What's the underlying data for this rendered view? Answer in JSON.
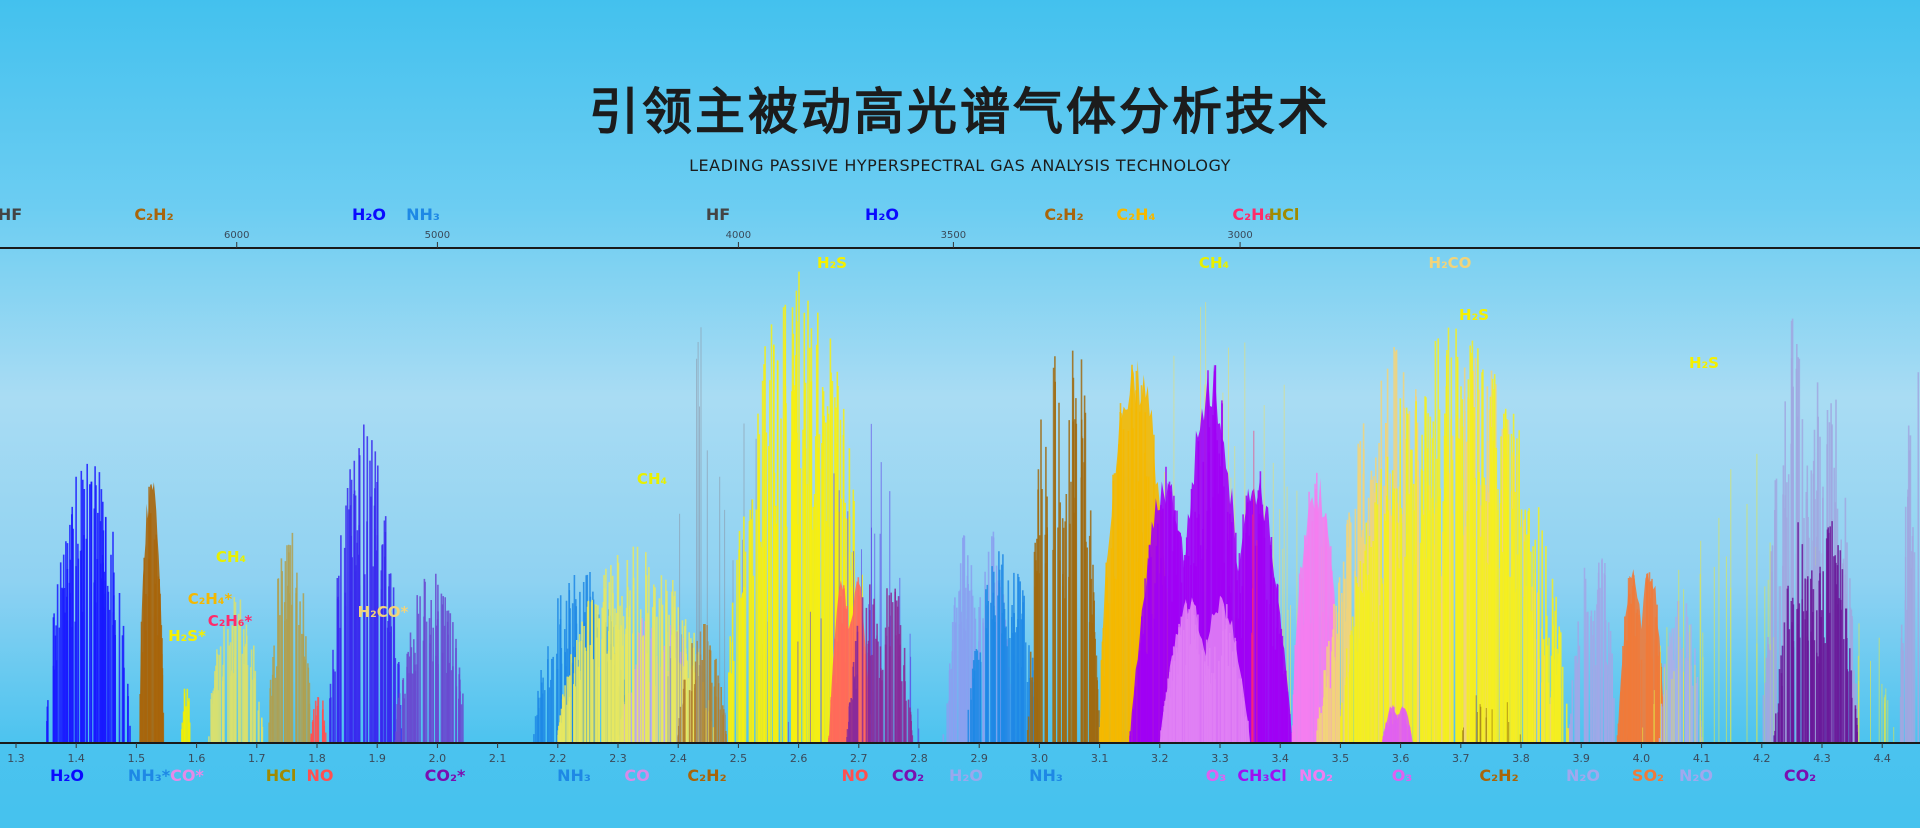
{
  "header": {
    "title": "引领主被动高光谱气体分析技术",
    "subtitle": "LEADING PASSIVE HYPERSPECTRAL GAS ANALYSIS TECHNOLOGY"
  },
  "chart_data": {
    "type": "area",
    "title": "",
    "xlabel": "",
    "ylabel": "",
    "x_unit_bottom": "µm",
    "x_unit_top": "cm⁻¹",
    "xlim": [
      1.28,
      4.47
    ],
    "ylim": [
      0,
      1
    ],
    "grid": false,
    "bottom_ticks": [
      "1.3",
      "1.4",
      "1.5",
      "1.6",
      "1.7",
      "1.8",
      "1.9",
      "2.0",
      "2.1",
      "2.2",
      "2.3",
      "2.4",
      "2.5",
      "2.6",
      "2.7",
      "2.8",
      "2.9",
      "3.0",
      "3.1",
      "3.2",
      "3.3",
      "3.4",
      "3.5",
      "3.6",
      "3.7",
      "3.8",
      "3.9",
      "4.0",
      "4.1",
      "4.2",
      "4.3",
      "4.4"
    ],
    "top_ticks": [
      "6000",
      "5000",
      "4000",
      "3500",
      "3000"
    ],
    "top_gas_labels": [
      {
        "text": "HF",
        "color": "#444444"
      },
      {
        "text": "C₂H₂",
        "color": "#a8650a"
      },
      {
        "text": "H₂O",
        "color": "#0a0aff"
      },
      {
        "text": "NH₃",
        "color": "#1e88e5"
      },
      {
        "text": "HF",
        "color": "#444444"
      },
      {
        "text": "H₂O",
        "color": "#0a0aff"
      },
      {
        "text": "C₂H₂",
        "color": "#a8650a"
      },
      {
        "text": "C₂H₄",
        "color": "#f5b800"
      },
      {
        "text": "C₂H₆",
        "color": "#ff2a6a"
      },
      {
        "text": "HCl",
        "color": "#a08a00"
      }
    ],
    "bottom_gas_labels": [
      {
        "text": "H₂O",
        "color": "#0a0aff"
      },
      {
        "text": "NH₃*",
        "color": "#1e88e5"
      },
      {
        "text": "CO*",
        "color": "#e58ae8"
      },
      {
        "text": "HCl",
        "color": "#a08a00"
      },
      {
        "text": "NO",
        "color": "#ff5050"
      },
      {
        "text": "CO₂*",
        "color": "#7a0fb0"
      },
      {
        "text": "NH₃",
        "color": "#1e88e5"
      },
      {
        "text": "CO",
        "color": "#d88ae8"
      },
      {
        "text": "C₂H₂",
        "color": "#a8650a"
      },
      {
        "text": "NO",
        "color": "#ff5050"
      },
      {
        "text": "CO₂",
        "color": "#7a0fb0"
      },
      {
        "text": "H₂O",
        "color": "#9aa8ee"
      },
      {
        "text": "NH₃",
        "color": "#1e88e5"
      },
      {
        "text": "O₃",
        "color": "#e060f0"
      },
      {
        "text": "CH₃Cl",
        "color": "#a010f0"
      },
      {
        "text": "NO₂",
        "color": "#f07ef0"
      },
      {
        "text": "O₃",
        "color": "#e060f0"
      },
      {
        "text": "C₂H₂",
        "color": "#a8650a"
      },
      {
        "text": "N₂O",
        "color": "#a0a8ee"
      },
      {
        "text": "SO₂",
        "color": "#f07a3a"
      },
      {
        "text": "N₂O",
        "color": "#a0a8ee"
      },
      {
        "text": "CO₂",
        "color": "#7a0fb0"
      }
    ],
    "inner_gas_labels": [
      {
        "text": "CH₄",
        "color": "#e8f000"
      },
      {
        "text": "C₂H₄*",
        "color": "#f5b800"
      },
      {
        "text": "C₂H₆*",
        "color": "#ff2a6a"
      },
      {
        "text": "H₂S*",
        "color": "#f5f000"
      },
      {
        "text": "H₂CO*",
        "color": "#f2d47a"
      },
      {
        "text": "CH₄",
        "color": "#e8f000"
      },
      {
        "text": "H₂S",
        "color": "#f5f000"
      },
      {
        "text": "CH₄",
        "color": "#e8f000"
      },
      {
        "text": "H₂CO",
        "color": "#f2d47a"
      },
      {
        "text": "H₂S",
        "color": "#f5f000"
      },
      {
        "text": "H₂S",
        "color": "#f5f000"
      }
    ],
    "series": [
      {
        "name": "H₂O",
        "color": "#1a1aff",
        "from": 1.35,
        "to": 1.49,
        "peak": 0.58,
        "style": "lines",
        "lobes": 1
      },
      {
        "name": "C₂H₂",
        "color": "#a8650a",
        "from": 1.505,
        "to": 1.545,
        "peak": 0.57,
        "style": "fill",
        "lobes": 1
      },
      {
        "name": "H₂S*",
        "color": "#f5f000",
        "from": 1.575,
        "to": 1.59,
        "peak": 0.15,
        "style": "lines",
        "lobes": 1
      },
      {
        "name": "CH₄",
        "color": "#d8e070",
        "from": 1.62,
        "to": 1.71,
        "peak": 0.3,
        "style": "lines",
        "lobes": 1
      },
      {
        "name": "HCl",
        "color": "#b0a050",
        "from": 1.72,
        "to": 1.79,
        "peak": 0.45,
        "style": "lines",
        "lobes": 1
      },
      {
        "name": "NO",
        "color": "#ff5050",
        "from": 1.79,
        "to": 1.815,
        "peak": 0.12,
        "style": "lines",
        "lobes": 1
      },
      {
        "name": "H₂O",
        "color": "#3a2aef",
        "from": 1.82,
        "to": 1.94,
        "peak": 0.65,
        "style": "lines",
        "lobes": 1
      },
      {
        "name": "CO₂*",
        "color": "#6a4ad0",
        "from": 1.93,
        "to": 2.05,
        "peak": 0.35,
        "style": "lines",
        "lobes": 1
      },
      {
        "name": "NH₃",
        "color": "#1e88e5",
        "from": 2.16,
        "to": 2.32,
        "peak": 0.36,
        "style": "lines",
        "lobes": 1
      },
      {
        "name": "CO",
        "color": "#c8a8e8",
        "from": 2.3,
        "to": 2.44,
        "peak": 0.3,
        "style": "lines",
        "lobes": 2
      },
      {
        "name": "CH₄",
        "color": "#e8e860",
        "from": 2.2,
        "to": 2.46,
        "peak": 0.4,
        "style": "lines",
        "lobes": 1
      },
      {
        "name": "C₂H₂",
        "color": "#b08030",
        "from": 2.4,
        "to": 2.48,
        "peak": 0.25,
        "style": "lines",
        "lobes": 1
      },
      {
        "name": "HF",
        "color": "#8a96a8",
        "from": 2.38,
        "to": 2.56,
        "peak": 0.95,
        "style": "sparse",
        "lobes": 1
      },
      {
        "name": "H₂S",
        "color": "#f7ef10",
        "from": 2.48,
        "to": 2.72,
        "peak": 0.97,
        "style": "lines",
        "lobes": 1
      },
      {
        "name": "H₂O",
        "color": "#5a3ae8",
        "from": 2.58,
        "to": 2.8,
        "peak": 0.8,
        "style": "sparse",
        "lobes": 1
      },
      {
        "name": "NO",
        "color": "#ff6a5a",
        "from": 2.65,
        "to": 2.72,
        "peak": 0.4,
        "style": "fill",
        "lobes": 2
      },
      {
        "name": "CO₂",
        "color": "#8a2a9a",
        "from": 2.68,
        "to": 2.79,
        "peak": 0.4,
        "style": "lines",
        "lobes": 2
      },
      {
        "name": "H₂O",
        "color": "#8aa0f0",
        "from": 2.84,
        "to": 2.96,
        "peak": 0.5,
        "style": "lines",
        "lobes": 2
      },
      {
        "name": "NH₃",
        "color": "#1e88e5",
        "from": 2.88,
        "to": 3.0,
        "peak": 0.4,
        "style": "lines",
        "lobes": 1
      },
      {
        "name": "C₂H₂",
        "color": "#a06a10",
        "from": 2.98,
        "to": 3.1,
        "peak": 0.98,
        "style": "lines",
        "lobes": 2
      },
      {
        "name": "CH₄",
        "color": "#e6e070",
        "from": 3.1,
        "to": 3.52,
        "peak": 0.95,
        "style": "sparse",
        "lobes": 1
      },
      {
        "name": "C₂H₄",
        "color": "#f5b800",
        "from": 3.1,
        "to": 3.22,
        "peak": 0.8,
        "style": "fill",
        "lobes": 1
      },
      {
        "name": "CH₃Cl",
        "color": "#a000f5",
        "from": 3.15,
        "to": 3.42,
        "peak": 0.78,
        "style": "fill",
        "lobes": 3
      },
      {
        "name": "O₃",
        "color": "#e080f5",
        "from": 3.2,
        "to": 3.35,
        "peak": 0.35,
        "style": "fill",
        "lobes": 2
      },
      {
        "name": "C₂H₆",
        "color": "#ff2a6a",
        "from": 3.35,
        "to": 3.38,
        "peak": 0.9,
        "style": "sparse",
        "lobes": 1
      },
      {
        "name": "NO₂",
        "color": "#f47ef0",
        "from": 3.42,
        "to": 3.5,
        "peak": 0.55,
        "style": "fill",
        "lobes": 1
      },
      {
        "name": "H₂CO",
        "color": "#f2d47a",
        "from": 3.46,
        "to": 3.86,
        "peak": 0.95,
        "style": "lines",
        "lobes": 2
      },
      {
        "name": "H₂S",
        "color": "#f5ee20",
        "from": 3.5,
        "to": 3.88,
        "peak": 0.85,
        "style": "lines",
        "lobes": 1
      },
      {
        "name": "O₃",
        "color": "#e060f0",
        "from": 3.57,
        "to": 3.62,
        "peak": 0.09,
        "style": "fill",
        "lobes": 2
      },
      {
        "name": "C₂H₂",
        "color": "#8a6010",
        "from": 3.7,
        "to": 3.8,
        "peak": 0.15,
        "style": "sparse",
        "lobes": 1
      },
      {
        "name": "N₂O",
        "color": "#a0a8e8",
        "from": 3.88,
        "to": 3.96,
        "peak": 0.45,
        "style": "lines",
        "lobes": 2
      },
      {
        "name": "SO₂",
        "color": "#f07a3a",
        "from": 3.96,
        "to": 4.04,
        "peak": 0.44,
        "style": "fill",
        "lobes": 2
      },
      {
        "name": "N₂O",
        "color": "#a8b0e8",
        "from": 4.03,
        "to": 4.1,
        "peak": 0.3,
        "style": "lines",
        "lobes": 1
      },
      {
        "name": "H₂S",
        "color": "#e8e840",
        "from": 4.0,
        "to": 4.42,
        "peak": 0.6,
        "style": "sparse",
        "lobes": 1
      },
      {
        "name": "N₂O",
        "color": "#a0a8e0",
        "from": 4.2,
        "to": 4.36,
        "peak": 1.0,
        "style": "lines",
        "lobes": 2
      },
      {
        "name": "CO₂",
        "color": "#6a1a9a",
        "from": 4.22,
        "to": 4.36,
        "peak": 0.53,
        "style": "lines",
        "lobes": 2
      },
      {
        "name": "N₂O",
        "color": "#a0a8e0",
        "from": 4.43,
        "to": 4.5,
        "peak": 0.92,
        "style": "lines",
        "lobes": 1
      }
    ]
  }
}
